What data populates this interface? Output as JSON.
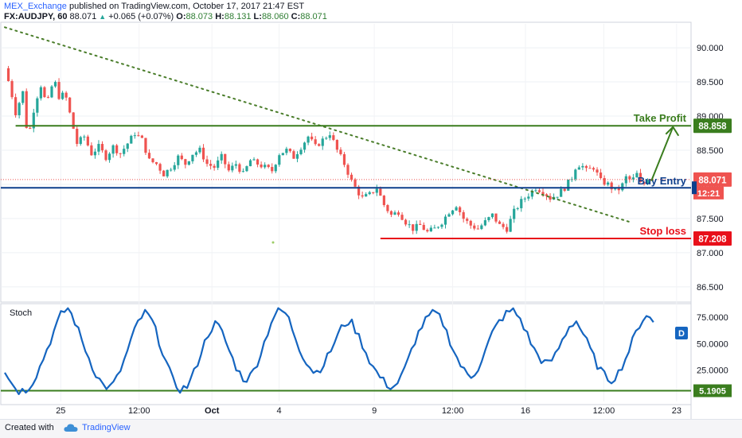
{
  "header": {
    "author": "MEX_Exchange",
    "published": "published on TradingView.com, October 17, 2017 21:47 EST",
    "symbol": "FX:AUDJPY, 60",
    "last": "88.071",
    "change_arrow": "▲",
    "change": "+0.065 (+0.07%)",
    "o_label": "O:",
    "o_value": "88.073",
    "h_label": "H:",
    "h_value": "88.131",
    "l_label": "L:",
    "l_value": "88.060",
    "c_label": "C:",
    "c_value": "88.071"
  },
  "footer": {
    "created_with": "Created with",
    "brand": "TradingView"
  },
  "colors": {
    "up": "#26a69a",
    "down": "#ef5350",
    "green": "#3a7d1e",
    "blue": "#0d3f8c",
    "red": "#e8101a",
    "stoch": "#1565c0",
    "trend_dots": "#4a7d2a",
    "axis_text": "#131722"
  },
  "chart_data": [
    {
      "type": "candlestick",
      "title": "FX:AUDJPY, 60",
      "x_tick_labels": [
        "25",
        "12:00",
        "Oct",
        "4",
        "9",
        "12:00",
        "16",
        "12:00",
        "23"
      ],
      "y_tick_labels": [
        "90.000",
        "89.500",
        "89.000",
        "88.500",
        "88.000",
        "87.500",
        "87.000",
        "86.500"
      ],
      "ylim": [
        86.3,
        90.35
      ],
      "close_path": [
        [
          0,
          89.7
        ],
        [
          0.8,
          89.4
        ],
        [
          1.5,
          89.05
        ],
        [
          2.5,
          89.35
        ],
        [
          3.2,
          88.65
        ],
        [
          4.2,
          89.2
        ],
        [
          5.0,
          89.45
        ],
        [
          5.8,
          89.15
        ],
        [
          6.8,
          89.55
        ],
        [
          7.6,
          89.25
        ],
        [
          8.3,
          89.35
        ],
        [
          9.2,
          88.95
        ],
        [
          10.0,
          88.6
        ],
        [
          11.0,
          88.7
        ],
        [
          12.0,
          88.45
        ],
        [
          13.0,
          88.55
        ],
        [
          14.0,
          88.4
        ],
        [
          15.0,
          88.55
        ],
        [
          16.0,
          88.45
        ],
        [
          17.0,
          88.6
        ],
        [
          18.0,
          88.75
        ],
        [
          19.0,
          88.65
        ],
        [
          20.0,
          88.35
        ],
        [
          21.0,
          88.3
        ],
        [
          22.0,
          88.15
        ],
        [
          23.0,
          88.25
        ],
        [
          24.0,
          88.4
        ],
        [
          25.0,
          88.3
        ],
        [
          26.0,
          88.45
        ],
        [
          27.0,
          88.5
        ],
        [
          28.0,
          88.3
        ],
        [
          29.0,
          88.25
        ],
        [
          30.0,
          88.4
        ],
        [
          31.0,
          88.2
        ],
        [
          32.0,
          88.3
        ],
        [
          33.0,
          88.15
        ],
        [
          34.0,
          88.35
        ],
        [
          35.0,
          88.3
        ],
        [
          36.0,
          88.25
        ],
        [
          37.0,
          88.2
        ],
        [
          38.0,
          88.45
        ],
        [
          39.0,
          88.5
        ],
        [
          40.0,
          88.4
        ],
        [
          41.0,
          88.55
        ],
        [
          42.0,
          88.7
        ],
        [
          43.0,
          88.55
        ],
        [
          44.0,
          88.65
        ],
        [
          45.0,
          88.75
        ],
        [
          46.0,
          88.5
        ],
        [
          47.0,
          88.3
        ],
        [
          48.0,
          88.05
        ],
        [
          48.8,
          87.9
        ],
        [
          49.5,
          87.8
        ],
        [
          50.5,
          87.85
        ],
        [
          51.5,
          87.95
        ],
        [
          52.5,
          87.7
        ],
        [
          53.5,
          87.55
        ],
        [
          54.5,
          87.6
        ],
        [
          55.5,
          87.45
        ],
        [
          56.5,
          87.35
        ],
        [
          57.5,
          87.4
        ],
        [
          58.5,
          87.3
        ],
        [
          59.5,
          87.35
        ],
        [
          60.5,
          87.45
        ],
        [
          61.5,
          87.6
        ],
        [
          62.5,
          87.7
        ],
        [
          63.5,
          87.5
        ],
        [
          64.5,
          87.4
        ],
        [
          65.5,
          87.35
        ],
        [
          66.5,
          87.45
        ],
        [
          67.5,
          87.55
        ],
        [
          68.5,
          87.4
        ],
        [
          69.5,
          87.35
        ],
        [
          70.5,
          87.6
        ],
        [
          71.5,
          87.75
        ],
        [
          72.5,
          87.85
        ],
        [
          73.5,
          87.95
        ],
        [
          74.5,
          87.9
        ],
        [
          75.5,
          87.8
        ],
        [
          76.5,
          87.85
        ],
        [
          77.5,
          87.95
        ],
        [
          78.5,
          88.1
        ],
        [
          79.0,
          88.25
        ],
        [
          79.7,
          88.3
        ],
        [
          80.5,
          88.2
        ],
        [
          81.5,
          88.25
        ],
        [
          82.5,
          88.05
        ],
        [
          83.5,
          88.0
        ],
        [
          84.5,
          87.9
        ],
        [
          85.3,
          87.95
        ],
        [
          86.0,
          88.1
        ],
        [
          86.8,
          88.05
        ],
        [
          87.5,
          88.15
        ],
        [
          88.2,
          87.95
        ],
        [
          89.0,
          88.1
        ],
        [
          89.8,
          88.071
        ]
      ],
      "levels": [
        {
          "name": "Take Profit",
          "value": 88.858,
          "label": "88.858"
        },
        {
          "name": "Buy Entry",
          "value": 87.95
        },
        {
          "name": "Stop loss",
          "value": 87.208,
          "label": "87.208"
        }
      ],
      "last_price_label": "88.071",
      "countdown_label": "12:21",
      "trendline": {
        "from": [
          0,
          90.3
        ],
        "to": [
          86.5,
          87.45
        ]
      },
      "projection_arrow": {
        "from": [
          89.5,
          88.05
        ],
        "to": [
          92.5,
          88.84
        ]
      }
    },
    {
      "type": "line",
      "title": "Stoch",
      "series_badge": "D",
      "y_tick_labels": [
        "75.0000",
        "50.0000",
        "25.0000"
      ],
      "ylim": [
        -5,
        88
      ],
      "oversold_level": 5.1905,
      "oversold_label": "5.1905",
      "values": [
        25,
        12,
        5,
        6,
        14,
        28,
        45,
        62,
        78,
        84,
        70,
        52,
        35,
        20,
        10,
        8,
        18,
        35,
        55,
        72,
        80,
        70,
        50,
        30,
        12,
        6,
        10,
        25,
        45,
        62,
        70,
        58,
        40,
        25,
        15,
        20,
        35,
        55,
        75,
        82,
        78,
        60,
        42,
        30,
        22,
        28,
        40,
        55,
        68,
        72,
        60,
        45,
        30,
        20,
        12,
        8,
        15,
        30,
        50,
        65,
        75,
        80,
        72,
        55,
        38,
        25,
        18,
        25,
        40,
        58,
        70,
        78,
        82,
        75,
        60,
        45,
        35,
        30,
        38,
        52,
        66,
        72,
        60,
        45,
        30,
        20,
        15,
        22,
        35,
        52,
        68,
        78,
        70
      ],
      "x_tick_labels": [
        "25",
        "12:00",
        "Oct",
        "4",
        "9",
        "12:00",
        "16",
        "12:00",
        "23"
      ]
    }
  ]
}
